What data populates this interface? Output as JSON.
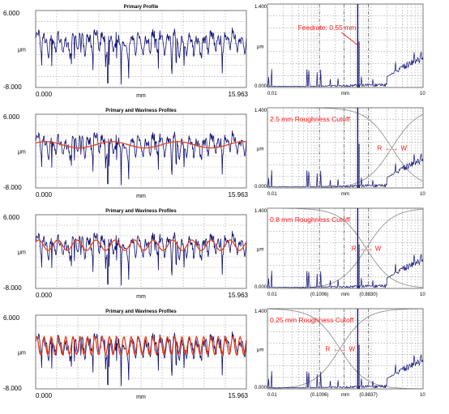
{
  "colors": {
    "primary": "#101070",
    "waviness": "#e6401a",
    "spectrum": "#101070",
    "annotation": "#ff1a1a",
    "filter": "#888888",
    "cutoff_line": "#555555"
  },
  "chart_data": [
    {
      "type": "line",
      "title": "Primary Profile",
      "y_top_label": "6.000",
      "y_bottom_label": "-8.000",
      "y_mid_label": "μm",
      "x_left_label": "0.000",
      "x_right_label": "15.963",
      "x_mid_label": "mm",
      "ylim": [
        -8,
        6
      ],
      "xlim": [
        0,
        15.963
      ],
      "series": [
        {
          "role": "primary",
          "amplitude": 2.2,
          "dips": true
        }
      ]
    },
    {
      "type": "line",
      "title": "Primary and Waviness Profiles",
      "y_top_label": "6.000",
      "y_bottom_label": "-8.000",
      "y_mid_label": "μm",
      "x_left_label": "0.000",
      "x_right_label": "15.963",
      "x_mid_label": "mm",
      "ylim": [
        -8,
        6
      ],
      "xlim": [
        0,
        15.963
      ],
      "series": [
        {
          "role": "primary",
          "amplitude": 2.2,
          "dips": true
        },
        {
          "role": "waviness",
          "amplitude": 0.6,
          "wavelength_mm": 5.0
        }
      ]
    },
    {
      "type": "line",
      "title": "Primary and Waviness Profiles",
      "y_top_label": "6.000",
      "y_bottom_label": "-8.000",
      "y_mid_label": "μm",
      "x_left_label": "0.000",
      "x_right_label": "15.963",
      "x_mid_label": "mm",
      "ylim": [
        -8,
        6
      ],
      "xlim": [
        0,
        15.963
      ],
      "series": [
        {
          "role": "primary",
          "amplitude": 2.2,
          "dips": true
        },
        {
          "role": "waviness",
          "amplitude": 1.0,
          "wavelength_mm": 1.45
        }
      ]
    },
    {
      "type": "line",
      "title": "Primary and Waviness Profiles",
      "y_top_label": "6.000",
      "y_bottom_label": "-8.000",
      "y_mid_label": "μm",
      "x_left_label": "0.000",
      "x_right_label": "15.963",
      "x_mid_label": "mm",
      "ylim": [
        -8,
        6
      ],
      "xlim": [
        0,
        15.963
      ],
      "series": [
        {
          "role": "primary",
          "amplitude": 2.2,
          "dips": true
        },
        {
          "role": "waviness",
          "amplitude": 1.7,
          "wavelength_mm": 0.55
        }
      ]
    },
    {
      "type": "line",
      "scale": "log-x",
      "y_top_label": "1.400",
      "y_bottom_label": "0.000",
      "y_mid_label": "μm",
      "x_left_label": "0.01",
      "x_right_label": "10",
      "x_mid_label": "mm",
      "xlim": [
        0.01,
        10
      ],
      "ylim": [
        0,
        1.4
      ],
      "peak": {
        "x": 0.55,
        "y": 1.4
      },
      "annotation": "Feedrate: 0.55 mm",
      "annotation_position": "top-center",
      "cutoff": null,
      "filter_crossing": null,
      "bracket_labels": []
    },
    {
      "type": "line",
      "scale": "log-x",
      "y_top_label": "1.400",
      "y_bottom_label": "0.000",
      "y_mid_label": "μm",
      "x_left_label": "0.01",
      "x_right_label": "10",
      "x_mid_label": "mm",
      "xlim": [
        0.01,
        10
      ],
      "ylim": [
        0,
        1.4
      ],
      "peak": {
        "x": 0.55,
        "y": 1.4
      },
      "annotation": "2.5 mm Roughness Cutoff",
      "annotation_position": "top-left",
      "cutoff": 2.5,
      "filter_crossing": 2.5,
      "bracket_labels": [],
      "rw_label": {
        "left": "R",
        "right": "W",
        "arrow": "←→"
      }
    },
    {
      "type": "line",
      "scale": "log-x",
      "y_top_label": "1.400",
      "y_bottom_label": "0.000",
      "y_mid_label": "μm",
      "x_left_label": "0.01",
      "x_right_label": "10",
      "x_mid_label": "mm",
      "xlim": [
        0.01,
        10
      ],
      "ylim": [
        0,
        1.4
      ],
      "peak": {
        "x": 0.55,
        "y": 1.4
      },
      "annotation": "0.8 mm Roughness Cutoff",
      "annotation_position": "top-left",
      "cutoff": 0.8,
      "filter_crossing": 0.8,
      "bracket_labels": [
        {
          "text": "(0.1006)",
          "x": 0.1006
        },
        {
          "text": "(0.8830)",
          "x": 0.883
        }
      ],
      "rw_label": {
        "left": "R",
        "right": "W",
        "arrow": "←→"
      }
    },
    {
      "type": "line",
      "scale": "log-x",
      "y_top_label": "1.400",
      "y_bottom_label": "0.000",
      "y_mid_label": "μm",
      "x_left_label": "0.01",
      "x_right_label": "10",
      "x_mid_label": "mm",
      "xlim": [
        0.01,
        10
      ],
      "ylim": [
        0,
        1.4
      ],
      "peak": {
        "x": 0.55,
        "y": 1.4
      },
      "annotation": "0.25 mm Roughness Cutoff",
      "annotation_position": "top-left",
      "cutoff": 0.25,
      "filter_crossing": 0.25,
      "bracket_labels": [
        {
          "text": "(0.1006)",
          "x": 0.1006
        },
        {
          "text": "(0.8837)",
          "x": 0.8837
        }
      ],
      "rw_label": {
        "left": "R",
        "right": "W",
        "arrow": "←→"
      }
    }
  ]
}
